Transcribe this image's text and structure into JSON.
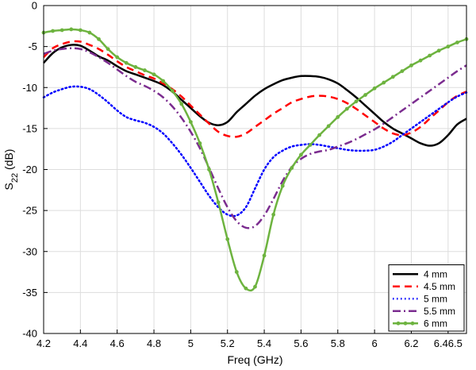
{
  "chart_data": {
    "type": "line",
    "title": "",
    "xlabel": "Freq (GHz)",
    "ylabel_main": "S",
    "ylabel_sub": "22",
    "ylabel_unit": " (dB)",
    "xlim": [
      4.2,
      6.5
    ],
    "ylim": [
      -40,
      0
    ],
    "xticks": [
      4.2,
      4.4,
      4.6,
      4.8,
      5,
      5.2,
      5.4,
      5.6,
      5.8,
      6,
      6.2,
      6.4,
      6.5
    ],
    "xtick_labels": [
      "4.2",
      "4.4",
      "4.6",
      "4.8",
      "5",
      "5.2",
      "5.4",
      "5.6",
      "5.8",
      "6",
      "6.2",
      "6.46.5",
      ""
    ],
    "yticks": [
      0,
      -5,
      -10,
      -15,
      -20,
      -25,
      -30,
      -35,
      -40
    ],
    "ytick_labels": [
      "0",
      "-5",
      "-10",
      "-15",
      "-20",
      "-25",
      "-30",
      "-35",
      "-40"
    ],
    "grid": true,
    "legend_position": "bottom-right",
    "series": [
      {
        "name": "4 mm",
        "color": "#000000",
        "style": "solid",
        "x": [
          4.2,
          4.25,
          4.3,
          4.35,
          4.4,
          4.45,
          4.5,
          4.55,
          4.6,
          4.65,
          4.7,
          4.75,
          4.8,
          4.85,
          4.9,
          4.95,
          5.0,
          5.05,
          5.1,
          5.15,
          5.2,
          5.25,
          5.3,
          5.35,
          5.4,
          5.45,
          5.5,
          5.55,
          5.6,
          5.65,
          5.7,
          5.75,
          5.8,
          5.85,
          5.9,
          5.95,
          6.0,
          6.05,
          6.1,
          6.15,
          6.2,
          6.25,
          6.3,
          6.35,
          6.4,
          6.45,
          6.5
        ],
        "y": [
          -7,
          -5.8,
          -5.1,
          -4.8,
          -4.9,
          -5.5,
          -6.2,
          -6.7,
          -7.4,
          -8.0,
          -8.4,
          -8.8,
          -9.2,
          -9.7,
          -10.5,
          -11.5,
          -12.5,
          -13.5,
          -14.3,
          -14.6,
          -14.2,
          -13.0,
          -12.0,
          -11.0,
          -10.2,
          -9.6,
          -9.1,
          -8.8,
          -8.6,
          -8.6,
          -8.7,
          -9.0,
          -9.5,
          -10.3,
          -11.2,
          -12.2,
          -13.2,
          -14.2,
          -15.0,
          -15.6,
          -16.2,
          -16.8,
          -17.1,
          -16.8,
          -15.8,
          -14.5,
          -13.8
        ]
      },
      {
        "name": "4.5 mm",
        "color": "#ff0000",
        "style": "dash",
        "x": [
          4.2,
          4.25,
          4.3,
          4.35,
          4.4,
          4.45,
          4.5,
          4.55,
          4.6,
          4.65,
          4.7,
          4.75,
          4.8,
          4.85,
          4.9,
          4.95,
          5.0,
          5.05,
          5.1,
          5.15,
          5.2,
          5.25,
          5.3,
          5.35,
          5.4,
          5.45,
          5.5,
          5.55,
          5.6,
          5.65,
          5.7,
          5.75,
          5.8,
          5.85,
          5.9,
          5.95,
          6.0,
          6.05,
          6.1,
          6.15,
          6.2,
          6.25,
          6.3,
          6.35,
          6.4,
          6.45,
          6.5
        ],
        "y": [
          -6.3,
          -5.2,
          -4.7,
          -4.4,
          -4.4,
          -4.8,
          -5.3,
          -6.0,
          -6.8,
          -7.5,
          -8.0,
          -8.5,
          -8.9,
          -9.5,
          -10.2,
          -11.1,
          -12.2,
          -13.3,
          -14.4,
          -15.4,
          -15.9,
          -16.0,
          -15.6,
          -14.8,
          -14.0,
          -13.2,
          -12.5,
          -11.8,
          -11.4,
          -11.1,
          -11.0,
          -11.1,
          -11.4,
          -11.9,
          -12.6,
          -13.4,
          -14.2,
          -15.0,
          -15.6,
          -15.8,
          -15.5,
          -14.8,
          -13.8,
          -12.8,
          -11.8,
          -11.0,
          -10.5
        ]
      },
      {
        "name": "5 mm",
        "color": "#0000ff",
        "style": "dot",
        "x": [
          4.2,
          4.25,
          4.3,
          4.35,
          4.4,
          4.45,
          4.5,
          4.55,
          4.6,
          4.65,
          4.7,
          4.75,
          4.8,
          4.85,
          4.9,
          4.95,
          5.0,
          5.05,
          5.1,
          5.15,
          5.2,
          5.25,
          5.3,
          5.35,
          5.4,
          5.45,
          5.5,
          5.55,
          5.6,
          5.65,
          5.7,
          5.75,
          5.8,
          5.85,
          5.9,
          5.95,
          6.0,
          6.05,
          6.1,
          6.15,
          6.2,
          6.25,
          6.3,
          6.35,
          6.4,
          6.45,
          6.5
        ],
        "y": [
          -11.2,
          -10.6,
          -10.2,
          -9.9,
          -9.9,
          -10.2,
          -10.9,
          -11.8,
          -12.8,
          -13.6,
          -14.0,
          -14.3,
          -14.8,
          -15.6,
          -16.8,
          -18.2,
          -19.8,
          -21.5,
          -23.2,
          -24.6,
          -25.5,
          -25.6,
          -24.6,
          -22.3,
          -20.0,
          -18.5,
          -17.7,
          -17.2,
          -17.0,
          -16.9,
          -17.0,
          -17.2,
          -17.4,
          -17.6,
          -17.7,
          -17.7,
          -17.6,
          -17.2,
          -16.6,
          -15.8,
          -15.0,
          -14.2,
          -13.4,
          -12.6,
          -11.8,
          -11.1,
          -10.6
        ]
      },
      {
        "name": "5.5 mm",
        "color": "#7b2c8f",
        "style": "dashdot",
        "x": [
          4.2,
          4.25,
          4.3,
          4.35,
          4.4,
          4.45,
          4.5,
          4.55,
          4.6,
          4.65,
          4.7,
          4.75,
          4.8,
          4.85,
          4.9,
          4.95,
          5.0,
          5.05,
          5.1,
          5.15,
          5.2,
          5.25,
          5.3,
          5.35,
          5.4,
          5.45,
          5.5,
          5.55,
          5.6,
          5.65,
          5.7,
          5.75,
          5.8,
          5.85,
          5.9,
          5.95,
          6.0,
          6.05,
          6.1,
          6.15,
          6.2,
          6.25,
          6.3,
          6.35,
          6.4,
          6.45,
          6.5
        ],
        "y": [
          -5.9,
          -5.5,
          -5.3,
          -5.2,
          -5.3,
          -5.7,
          -6.3,
          -7.0,
          -7.8,
          -8.6,
          -9.3,
          -9.8,
          -10.4,
          -11.2,
          -12.3,
          -13.7,
          -15.4,
          -17.4,
          -19.8,
          -22.3,
          -24.6,
          -26.3,
          -27.1,
          -26.9,
          -25.6,
          -23.6,
          -21.4,
          -19.7,
          -18.7,
          -18.1,
          -17.8,
          -17.6,
          -17.2,
          -16.8,
          -16.3,
          -15.7,
          -15.1,
          -14.4,
          -13.6,
          -12.8,
          -12.0,
          -11.2,
          -10.4,
          -9.6,
          -8.8,
          -8.0,
          -7.3
        ]
      },
      {
        "name": "6 mm",
        "color": "#6db33f",
        "style": "solid-marker",
        "x": [
          4.2,
          4.25,
          4.3,
          4.35,
          4.4,
          4.45,
          4.5,
          4.55,
          4.6,
          4.65,
          4.7,
          4.75,
          4.8,
          4.85,
          4.9,
          4.95,
          5.0,
          5.05,
          5.1,
          5.15,
          5.2,
          5.25,
          5.3,
          5.35,
          5.4,
          5.45,
          5.5,
          5.55,
          5.6,
          5.65,
          5.7,
          5.75,
          5.8,
          5.85,
          5.9,
          5.95,
          6.0,
          6.05,
          6.1,
          6.15,
          6.2,
          6.25,
          6.3,
          6.35,
          6.4,
          6.45,
          6.5
        ],
        "y": [
          -3.3,
          -3.1,
          -3.0,
          -2.9,
          -3.0,
          -3.3,
          -4.1,
          -5.3,
          -6.3,
          -7.0,
          -7.5,
          -7.9,
          -8.4,
          -9.2,
          -10.4,
          -12.0,
          -14.2,
          -16.8,
          -20.0,
          -24.0,
          -28.5,
          -32.5,
          -34.5,
          -34.3,
          -30.5,
          -25.5,
          -22.0,
          -19.8,
          -18.2,
          -17.0,
          -15.8,
          -14.7,
          -13.6,
          -12.6,
          -11.7,
          -10.9,
          -10.1,
          -9.4,
          -8.7,
          -8.0,
          -7.3,
          -6.7,
          -6.1,
          -5.5,
          -5.0,
          -4.5,
          -4.1
        ]
      }
    ]
  }
}
